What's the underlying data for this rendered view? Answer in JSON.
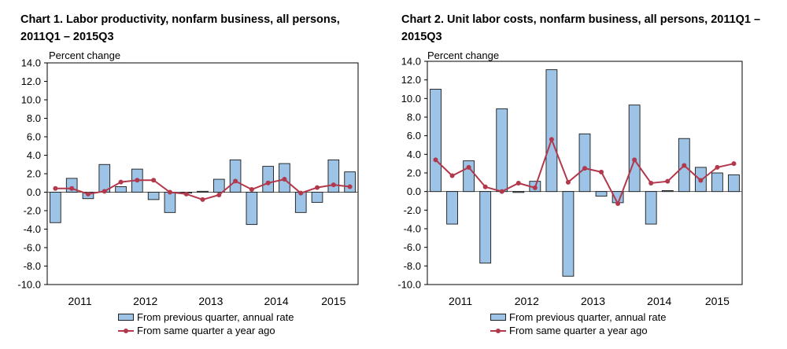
{
  "chart_data": [
    {
      "type": "bar",
      "title": "Chart  1. Labor productivity, nonfarm business, all persons, 2011Q1 – 2015Q3",
      "ylabel": "Percent change",
      "ylim": [
        -10,
        14
      ],
      "yticks": [
        "14.0",
        "12.0",
        "10.0",
        "8.0",
        "6.0",
        "4.0",
        "2.0",
        "0.0",
        "-2.0",
        "-4.0",
        "-6.0",
        "-8.0",
        "-10.0"
      ],
      "categories": [
        "2011",
        "2012",
        "2013",
        "2014",
        "2015"
      ],
      "x": [
        "2011Q1",
        "2011Q2",
        "2011Q3",
        "2011Q4",
        "2012Q1",
        "2012Q2",
        "2012Q3",
        "2012Q4",
        "2013Q1",
        "2013Q2",
        "2013Q3",
        "2013Q4",
        "2014Q1",
        "2014Q2",
        "2014Q3",
        "2014Q4",
        "2015Q1",
        "2015Q2",
        "2015Q3"
      ],
      "series": [
        {
          "name": "From previous quarter, annual rate",
          "kind": "bar",
          "color": "#9dc3e6",
          "values": [
            -3.3,
            1.5,
            -0.7,
            3.0,
            0.6,
            2.5,
            -0.8,
            -2.2,
            -0.1,
            0.1,
            1.4,
            3.5,
            -3.5,
            2.8,
            3.1,
            -2.2,
            -1.1,
            3.5,
            2.2
          ]
        },
        {
          "name": "From same quarter a year ago",
          "kind": "line",
          "color": "#b2384b",
          "values": [
            0.4,
            0.4,
            -0.2,
            0.1,
            1.1,
            1.3,
            1.3,
            0.0,
            -0.2,
            -0.8,
            -0.3,
            1.2,
            0.3,
            1.0,
            1.4,
            -0.1,
            0.5,
            0.8,
            0.6
          ]
        }
      ],
      "legend": "bottom",
      "grid": false
    },
    {
      "type": "bar",
      "title": "Chart  2. Unit labor costs, nonfarm business, all persons, 2011Q1 – 2015Q3",
      "ylabel": "Percent change",
      "ylim": [
        -10,
        14
      ],
      "yticks": [
        "14.0",
        "12.0",
        "10.0",
        "8.0",
        "6.0",
        "4.0",
        "2.0",
        "0.0",
        "-2.0",
        "-4.0",
        "-6.0",
        "-8.0",
        "-10.0"
      ],
      "categories": [
        "2011",
        "2012",
        "2013",
        "2014",
        "2015"
      ],
      "x": [
        "2011Q1",
        "2011Q2",
        "2011Q3",
        "2011Q4",
        "2012Q1",
        "2012Q2",
        "2012Q3",
        "2012Q4",
        "2013Q1",
        "2013Q2",
        "2013Q3",
        "2013Q4",
        "2014Q1",
        "2014Q2",
        "2014Q3",
        "2014Q4",
        "2015Q1",
        "2015Q2",
        "2015Q3"
      ],
      "series": [
        {
          "name": "From previous quarter, annual rate",
          "kind": "bar",
          "color": "#9dc3e6",
          "values": [
            11.0,
            -3.5,
            3.3,
            -7.7,
            8.9,
            -0.1,
            1.1,
            13.1,
            -9.1,
            6.2,
            -0.5,
            -1.2,
            9.3,
            -3.5,
            0.1,
            5.7,
            2.6,
            2.0,
            1.8
          ]
        },
        {
          "name": "From same quarter a year ago",
          "kind": "line",
          "color": "#b2384b",
          "values": [
            3.4,
            1.7,
            2.6,
            0.5,
            0.0,
            0.9,
            0.4,
            5.6,
            1.0,
            2.5,
            2.1,
            -1.3,
            3.4,
            0.9,
            1.1,
            2.8,
            1.2,
            2.6,
            3.0
          ]
        }
      ],
      "legend": "bottom",
      "grid": false
    }
  ]
}
